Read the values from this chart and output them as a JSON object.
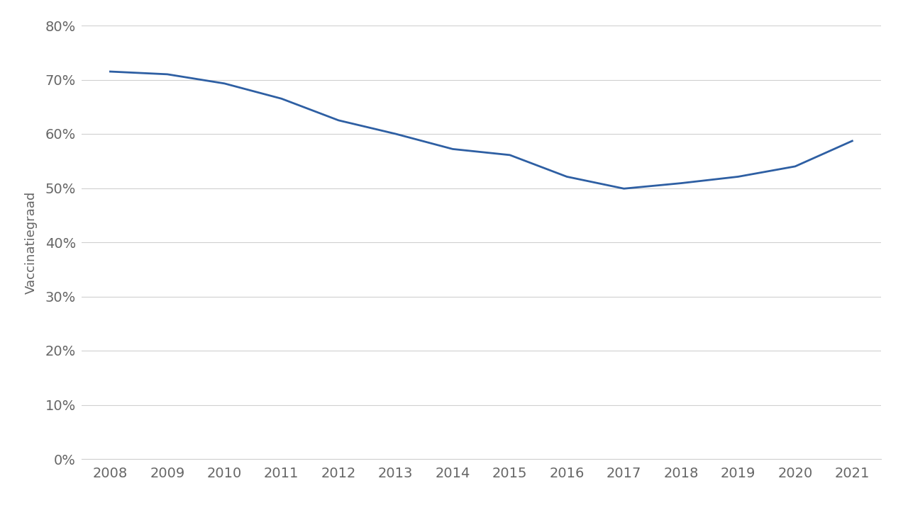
{
  "years": [
    2008,
    2009,
    2010,
    2011,
    2012,
    2013,
    2014,
    2015,
    2016,
    2017,
    2018,
    2019,
    2020,
    2021
  ],
  "values": [
    0.715,
    0.71,
    0.693,
    0.665,
    0.625,
    0.6,
    0.572,
    0.561,
    0.521,
    0.499,
    0.509,
    0.521,
    0.54,
    0.587
  ],
  "line_color": "#2E5FA3",
  "line_width": 2.0,
  "ylabel": "Vaccinatiegraad",
  "ylim": [
    0,
    0.8
  ],
  "yticks": [
    0.0,
    0.1,
    0.2,
    0.3,
    0.4,
    0.5,
    0.6,
    0.7,
    0.8
  ],
  "ytick_labels": [
    "0%",
    "10%",
    "20%",
    "30%",
    "40%",
    "50%",
    "60%",
    "70%",
    "80%"
  ],
  "xlim": [
    2007.5,
    2021.5
  ],
  "xticks": [
    2008,
    2009,
    2010,
    2011,
    2012,
    2013,
    2014,
    2015,
    2016,
    2017,
    2018,
    2019,
    2020,
    2021
  ],
  "background_color": "#ffffff",
  "grid_color": "#d0d0d0",
  "tick_label_fontsize": 14,
  "ylabel_fontsize": 13,
  "tick_label_color": "#666666",
  "ylabel_color": "#666666"
}
